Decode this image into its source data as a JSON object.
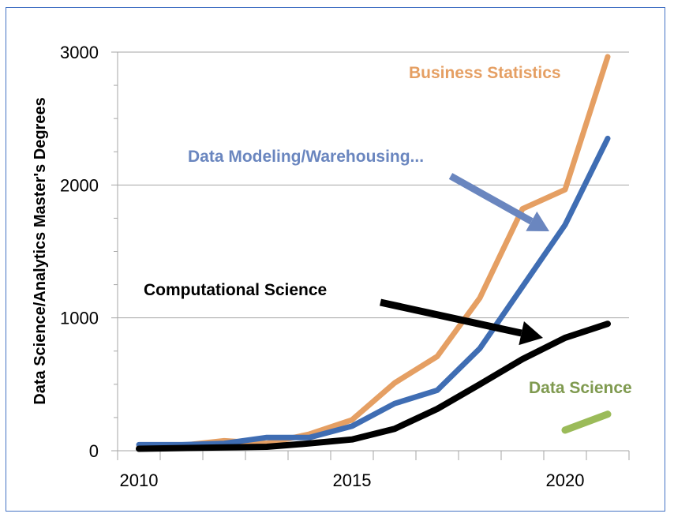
{
  "chart_data": {
    "type": "line",
    "title": "",
    "xlabel": "",
    "ylabel": "Data Science/Analytics Master's Degrees",
    "x": [
      2010,
      2011,
      2012,
      2013,
      2014,
      2015,
      2016,
      2017,
      2018,
      2019,
      2020,
      2021
    ],
    "x_tick_labels": [
      "2010",
      "2015",
      "2020"
    ],
    "y_tick_labels": [
      "0",
      "1000",
      "2000",
      "3000"
    ],
    "ylim": [
      0,
      3000
    ],
    "grid": "horizontal major gridlines",
    "legend": "none (inline annotations)",
    "series": [
      {
        "name": "Business Statistics",
        "color": "#e59f63",
        "values": [
          30,
          40,
          75,
          55,
          125,
          232,
          510,
          710,
          1150,
          1820,
          1965,
          2965
        ]
      },
      {
        "name": "Data Modeling/Warehousing...",
        "color": "#3f6db3",
        "values": [
          45,
          45,
          55,
          100,
          100,
          185,
          355,
          455,
          770,
          1235,
          1700,
          2350
        ]
      },
      {
        "name": "Computational Science",
        "color": "#000000",
        "values": [
          15,
          20,
          25,
          30,
          55,
          85,
          165,
          315,
          500,
          690,
          850,
          955
        ]
      },
      {
        "name": "Data Science",
        "color": "#9bbb59",
        "values": [
          null,
          null,
          null,
          null,
          null,
          null,
          null,
          null,
          null,
          null,
          155,
          275
        ]
      }
    ],
    "annotations": [
      {
        "text": "Business Statistics",
        "color": "#e59f63",
        "arrow": false
      },
      {
        "text": "Data Modeling/Warehousing...",
        "color": "#6a86bf",
        "arrow": true
      },
      {
        "text": "Computational Science",
        "color": "#000000",
        "arrow": true
      },
      {
        "text": "Data Science",
        "color": "#7f9a4f",
        "arrow": false
      }
    ]
  },
  "frame_color": "#4472c4"
}
